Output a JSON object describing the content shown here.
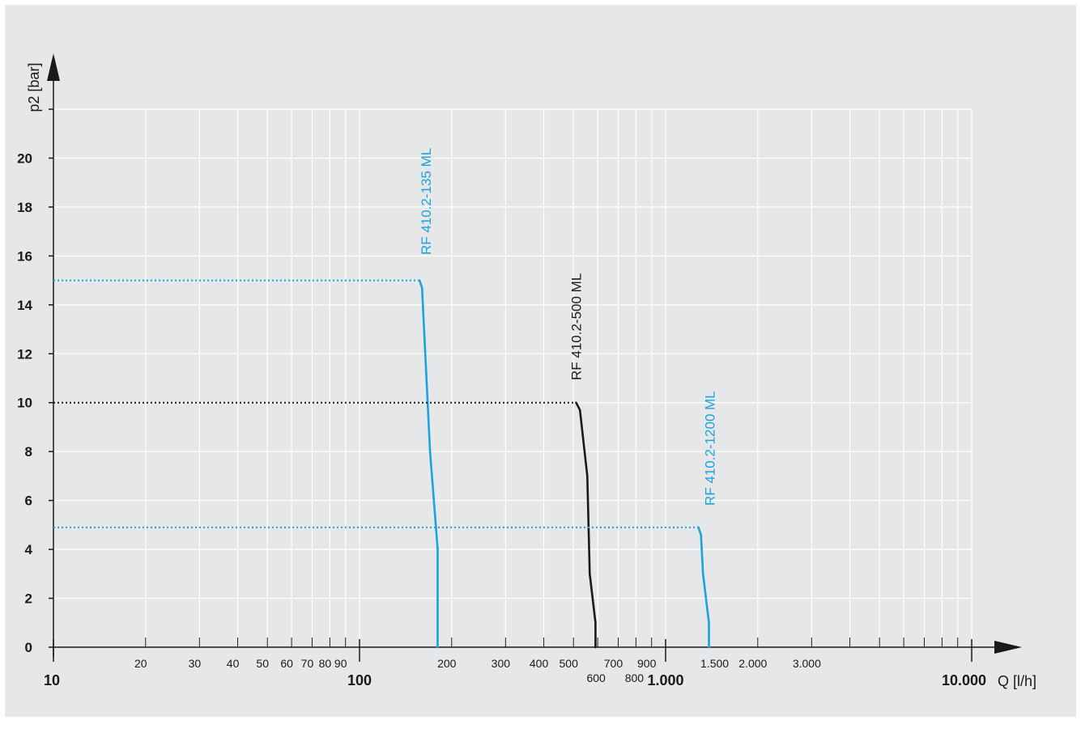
{
  "chart_data": {
    "type": "line",
    "xscale": "log",
    "xlim": [
      10,
      10000
    ],
    "ylim": [
      0,
      22
    ],
    "xlabel": "Q [l/h]",
    "ylabel": "p2 [bar]",
    "yticks": [
      {
        "value": 0,
        "label": "0"
      },
      {
        "value": 2,
        "label": "2"
      },
      {
        "value": 4,
        "label": "4"
      },
      {
        "value": 6,
        "label": "6"
      },
      {
        "value": 8,
        "label": "8"
      },
      {
        "value": 10,
        "label": "10"
      },
      {
        "value": 12,
        "label": "12"
      },
      {
        "value": 14,
        "label": "14"
      },
      {
        "value": 16,
        "label": "16"
      },
      {
        "value": 18,
        "label": "18"
      },
      {
        "value": 20,
        "label": "20"
      }
    ],
    "xticks": [
      {
        "value": 10,
        "label": "10",
        "major": true
      },
      {
        "value": 20,
        "label": "20"
      },
      {
        "value": 30,
        "label": "30"
      },
      {
        "value": 40,
        "label": "40"
      },
      {
        "value": 50,
        "label": "50"
      },
      {
        "value": 60,
        "label": "60"
      },
      {
        "value": 70,
        "label": "70"
      },
      {
        "value": 80,
        "label": "80"
      },
      {
        "value": 90,
        "label": "90"
      },
      {
        "value": 100,
        "label": "100",
        "major": true
      },
      {
        "value": 200,
        "label": "200"
      },
      {
        "value": 300,
        "label": "300"
      },
      {
        "value": 400,
        "label": "400"
      },
      {
        "value": 500,
        "label": "500"
      },
      {
        "value": 600,
        "label": "600",
        "low": true
      },
      {
        "value": 700,
        "label": "700"
      },
      {
        "value": 800,
        "label": "800",
        "low": true
      },
      {
        "value": 900,
        "label": "900"
      },
      {
        "value": 1000,
        "label": "1.000",
        "major": true
      },
      {
        "value": 1500,
        "label": "1.500"
      },
      {
        "value": 2000,
        "label": "2.000"
      },
      {
        "value": 3000,
        "label": "3.000"
      },
      {
        "value": 10000,
        "label": "10.000",
        "major": true
      }
    ],
    "grid": true,
    "series": [
      {
        "name": "RF 410.2-135 ML",
        "color": "#1aa3dc",
        "ref_y": 15,
        "points": [
          [
            157,
            15
          ],
          [
            160,
            14.7
          ],
          [
            170,
            8
          ],
          [
            180,
            4
          ],
          [
            180,
            0
          ]
        ]
      },
      {
        "name": "RF 410.2-500 ML",
        "color": "#1a1a1a",
        "ref_y": 10,
        "points": [
          [
            510,
            10
          ],
          [
            525,
            9.7
          ],
          [
            555,
            7
          ],
          [
            565,
            3
          ],
          [
            590,
            1
          ],
          [
            590,
            0
          ]
        ]
      },
      {
        "name": "RF 410.2-1200 ML",
        "color": "#1aa3dc",
        "ref_y": 4.9,
        "points": [
          [
            1280,
            4.9
          ],
          [
            1305,
            4.6
          ],
          [
            1325,
            3
          ],
          [
            1385,
            1
          ],
          [
            1385,
            0
          ]
        ]
      }
    ]
  }
}
